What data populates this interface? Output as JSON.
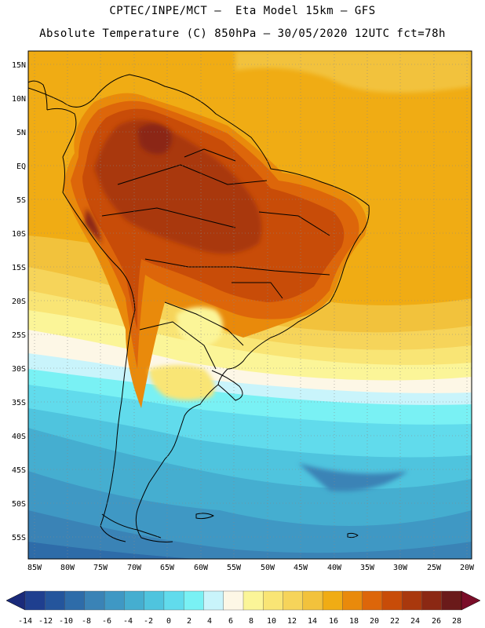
{
  "title_line1": "CPTEC/INPE/MCT –  Eta Model 15km – GFS",
  "title_line2": "Absolute Temperature (C) 850hPa – 30/05/2020 12UTC fct=78h",
  "lat_labels": [
    "15N",
    "10N",
    "5N",
    "EQ",
    "5S",
    "10S",
    "15S",
    "20S",
    "25S",
    "30S",
    "35S",
    "40S",
    "45S",
    "50S",
    "55S"
  ],
  "lon_labels": [
    "85W",
    "80W",
    "75W",
    "70W",
    "65W",
    "60W",
    "55W",
    "50W",
    "45W",
    "40W",
    "35W",
    "30W",
    "25W",
    "20W"
  ],
  "colorbar": {
    "ticks": [
      "-14",
      "-12",
      "-10",
      "-8",
      "-6",
      "-4",
      "-2",
      "0",
      "2",
      "4",
      "6",
      "8",
      "10",
      "12",
      "14",
      "16",
      "18",
      "20",
      "22",
      "24",
      "26",
      "28"
    ],
    "colors": [
      "#1f3f8f",
      "#24559c",
      "#2e6ca9",
      "#3a83b6",
      "#3f98c4",
      "#45aed0",
      "#4fc4de",
      "#61dbec",
      "#79f1f4",
      "#c9f4fb",
      "#fdf7e6",
      "#fbf598",
      "#f9e575",
      "#f6d45a",
      "#f2c23c",
      "#f0ac14",
      "#e98a0b",
      "#dd660a",
      "#c84c08",
      "#a9380d",
      "#8b2813",
      "#6a1a1a"
    ],
    "under_color": "#1a2a7a",
    "over_color": "#7a0d28"
  }
}
